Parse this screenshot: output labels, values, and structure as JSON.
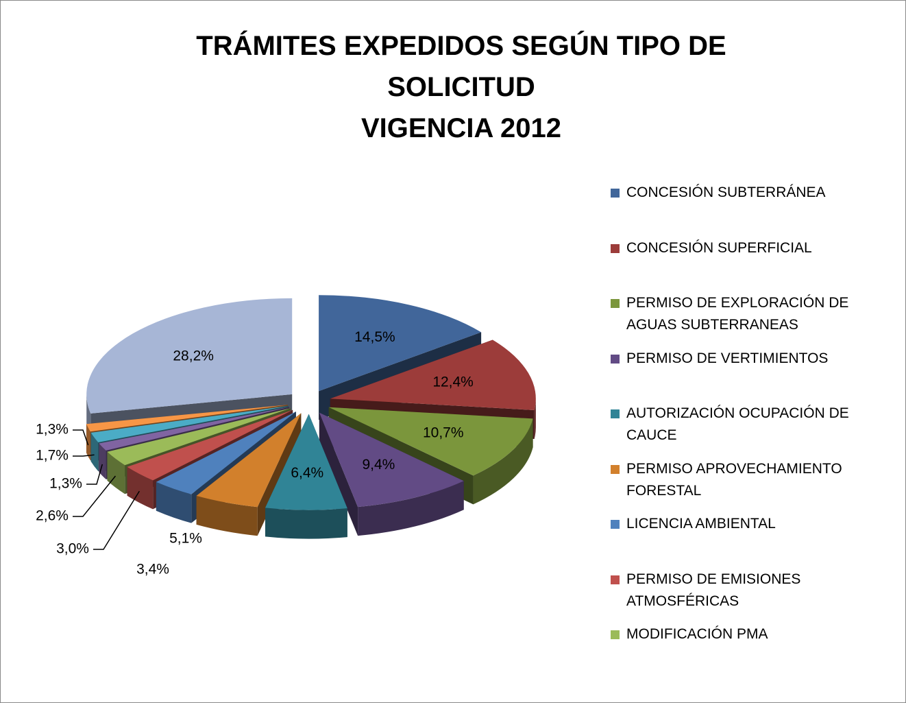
{
  "chart_data": {
    "type": "pie3d",
    "title": "TRÁMITES EXPEDIDOS SEGÚN TIPO DE SOLICITUD",
    "subtitle": "VIGENCIA 2012",
    "categories": [
      "CONCESIÓN SUBTERRÁNEA",
      "CONCESIÓN SUPERFICIAL",
      "PERMISO DE EXPLORACIÓN DE AGUAS SUBTERRANEAS",
      "PERMISO DE VERTIMIENTOS",
      "AUTORIZACIÓN OCUPACIÓN DE CAUCE",
      "PERMISO APROVECHAMIENTO FORESTAL",
      "LICENCIA AMBIENTAL",
      "PERMISO DE EMISIONES ATMOSFÉRICAS",
      "MODIFICACIÓN PMA",
      null,
      null,
      null,
      null
    ],
    "values": [
      14.5,
      12.4,
      10.7,
      9.4,
      6.4,
      5.1,
      3.4,
      3.0,
      2.6,
      1.3,
      1.7,
      1.3,
      28.2
    ],
    "value_labels": [
      "14,5%",
      "12,4%",
      "10,7%",
      "9,4%",
      "6,4%",
      "5,1%",
      "3,4%",
      "3,0%",
      "2,6%",
      "1,3%",
      "1,7%",
      "1,3%",
      "28,2%"
    ],
    "colors": [
      "#41669a",
      "#9c3c3a",
      "#7b963c",
      "#624b85",
      "#308496",
      "#d2802c",
      "#4f81bd",
      "#c0504d",
      "#9bbb59",
      "#8064a2",
      "#4bacc6",
      "#f79646",
      "#a7b6d6"
    ],
    "legend": "right"
  }
}
